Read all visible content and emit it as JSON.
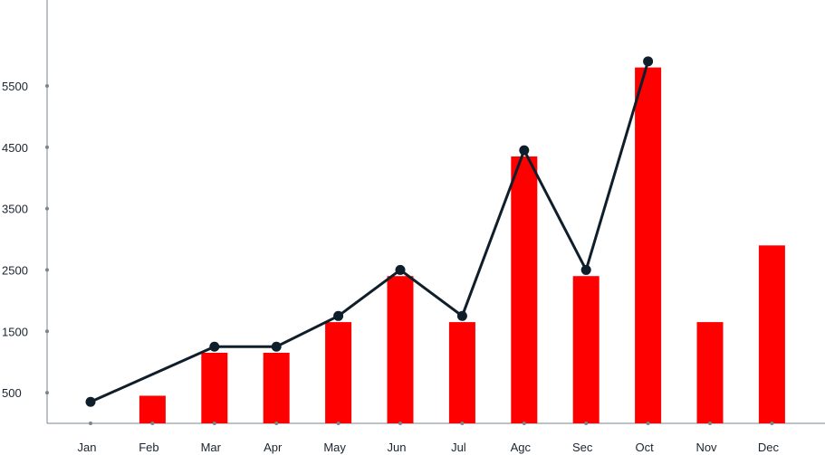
{
  "chart_data": {
    "type": "bar",
    "categories": [
      "Jan",
      "Feb",
      "Mar",
      "Apr",
      "May",
      "Jun",
      "Jul",
      "Agc",
      "Sec",
      "Oct",
      "Nov",
      "Dec"
    ],
    "series": [
      {
        "type": "bar",
        "values": [
          null,
          450,
          1150,
          1150,
          1650,
          2400,
          1650,
          4350,
          2400,
          5800,
          1650,
          2900
        ]
      },
      {
        "type": "line",
        "values": [
          350,
          null,
          1250,
          1250,
          1750,
          2500,
          1750,
          4450,
          2500,
          5900,
          null,
          null
        ]
      }
    ],
    "y_ticks": [
      500,
      1500,
      2500,
      3500,
      4500,
      5500
    ],
    "ylim": [
      0,
      6900
    ],
    "colors": {
      "bar": "#ff0000",
      "line": "#0f1e2b",
      "axis": "#7a8590"
    },
    "grid": false
  }
}
